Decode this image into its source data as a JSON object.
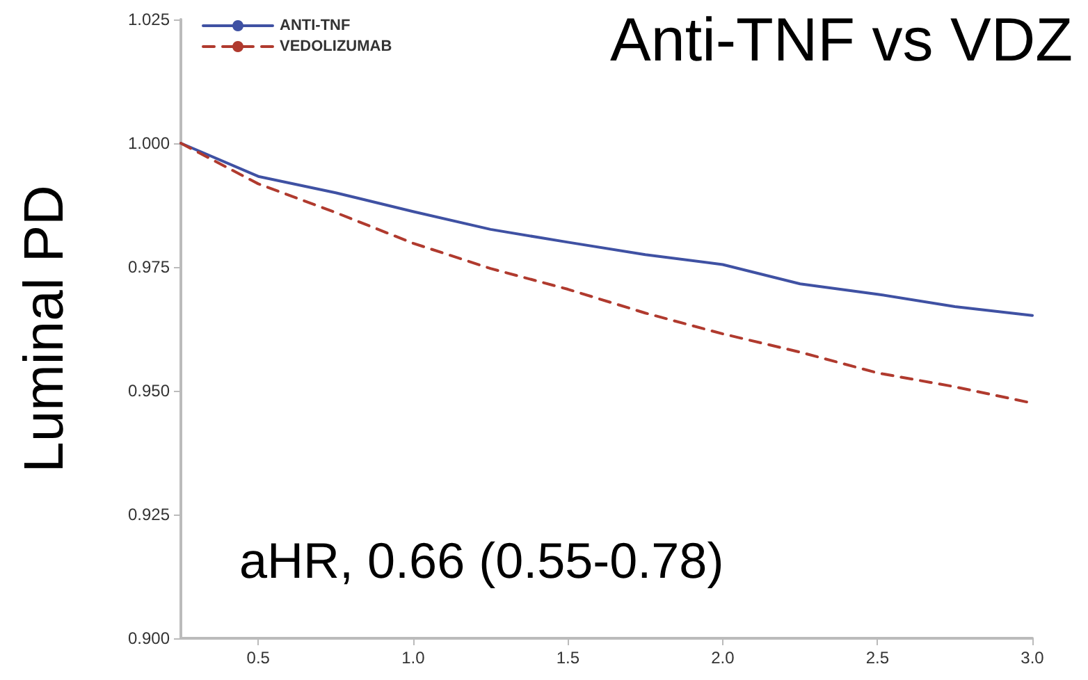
{
  "chart_data": {
    "type": "line",
    "title": "Anti-TNF vs VDZ",
    "ylabel": "Luminal PD",
    "annotations": [
      "aHR, 0.66 (0.55-0.78)"
    ],
    "x": [
      0.25,
      0.5,
      0.75,
      1.0,
      1.25,
      1.5,
      1.75,
      2.0,
      2.25,
      2.5,
      2.75,
      3.0
    ],
    "series": [
      {
        "name": "ANTI-TNF",
        "color": "#3f51a3",
        "line_style": "solid",
        "values": [
          1.0,
          0.9933,
          0.99,
          0.9862,
          0.9826,
          0.98,
          0.9775,
          0.9755,
          0.9716,
          0.9695,
          0.967,
          0.9652
        ]
      },
      {
        "name": "VEDOLIZUMAB",
        "color": "#b03a2e",
        "line_style": "dashed",
        "values": [
          1.0,
          0.9918,
          0.986,
          0.9798,
          0.9747,
          0.9705,
          0.9657,
          0.9615,
          0.9578,
          0.9536,
          0.9508,
          0.9475
        ]
      }
    ],
    "xlim": [
      0.25,
      3.0
    ],
    "xticks": [
      {
        "value": 0.5,
        "label": "0.5"
      },
      {
        "value": 1,
        "label": "1.0"
      },
      {
        "value": 1.5,
        "label": "1.5"
      },
      {
        "value": 2,
        "label": "2.0"
      },
      {
        "value": 2.5,
        "label": "2.5"
      },
      {
        "value": 3,
        "label": "3.0"
      }
    ],
    "ylim": [
      0.9,
      1.025
    ],
    "yticks": [
      {
        "value": 0.9,
        "label": "0.900"
      },
      {
        "value": 0.925,
        "label": "0.925"
      },
      {
        "value": 0.95,
        "label": "0.950"
      },
      {
        "value": 0.975,
        "label": "0.975"
      },
      {
        "value": 1,
        "label": "1.000"
      },
      {
        "value": 1.025,
        "label": "1.025"
      }
    ],
    "legend": "top left",
    "grid": false,
    "marker": "none"
  }
}
